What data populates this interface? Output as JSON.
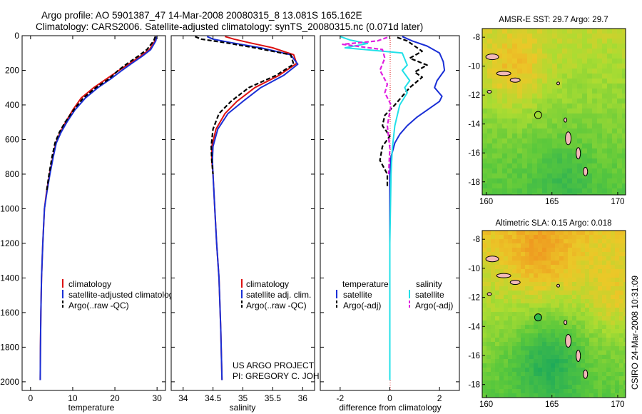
{
  "figure": {
    "title_line1": "Argo profile: AO 5901387_47 14-Mar-2008 20080315_8 13.081S 165.162E",
    "title_line2": "Climatology: CARS2006. Satellite-adjusted climatology: synTS_20080315.nc (0.071d later)",
    "credit_line1": "US ARGO PROJECT",
    "credit_line2": "PI: GREGORY C. JOHNSON",
    "stamp": "CSIRO 24-Mar-2008 10:31:09"
  },
  "colors": {
    "climatology": "#dd1111",
    "satellite": "#1a2fd6",
    "argo": "#000000",
    "satellite_salinity_diff": "#22e0e8",
    "argo_salinity_diff": "#e020e0"
  },
  "chart_data": [
    {
      "type": "line",
      "id": "temperature",
      "xlabel": "temperature",
      "ylabel": "",
      "xlim": [
        -2,
        32
      ],
      "ylim": [
        2050,
        0
      ],
      "xticks": [
        0,
        10,
        20,
        30
      ],
      "yticks": [
        0,
        200,
        400,
        600,
        800,
        1000,
        1200,
        1400,
        1600,
        1800,
        2000
      ],
      "legend": [
        "climatology",
        "satellite-adjusted climatology",
        "Argo(..raw -QC)"
      ],
      "series": [
        {
          "name": "climatology",
          "color": "climatology",
          "dash": "none",
          "x": [
            29.8,
            29.5,
            28.2,
            26,
            23.5,
            21,
            18,
            15,
            12,
            10,
            8.3,
            7,
            6,
            5.3,
            4.5,
            3.8,
            3.3,
            2.9,
            2.6,
            2.45,
            2.35,
            2.3
          ],
          "y": [
            5,
            30,
            80,
            120,
            160,
            200,
            250,
            300,
            360,
            430,
            500,
            560,
            620,
            700,
            800,
            900,
            1000,
            1200,
            1400,
            1600,
            1800,
            1990
          ]
        },
        {
          "name": "satellite-adjusted climatology",
          "color": "satellite",
          "dash": "none",
          "x": [
            29.9,
            29.7,
            28.5,
            26.4,
            24,
            21.7,
            19,
            16,
            13,
            10.5,
            8.6,
            7.2,
            6.1,
            5.4,
            4.6,
            3.9,
            3.3,
            2.9,
            2.6,
            2.45,
            2.35,
            2.3
          ],
          "y": [
            5,
            30,
            80,
            120,
            160,
            200,
            250,
            300,
            360,
            430,
            500,
            560,
            620,
            700,
            800,
            900,
            1000,
            1200,
            1400,
            1600,
            1800,
            1990
          ]
        },
        {
          "name": "Argo(..raw -QC)",
          "color": "argo",
          "dash": "6,3",
          "x": [
            29.6,
            29.2,
            27.6,
            25.4,
            23,
            20.8,
            18.6,
            15.5,
            12.5,
            10.2,
            8.2,
            6.8,
            5.8,
            5.1,
            4.4,
            3.8
          ],
          "y": [
            5,
            30,
            80,
            120,
            160,
            200,
            250,
            300,
            360,
            430,
            500,
            560,
            620,
            700,
            800,
            900
          ]
        }
      ]
    },
    {
      "type": "line",
      "id": "salinity",
      "xlabel": "salinity",
      "ylabel": "",
      "xlim": [
        33.8,
        36.2
      ],
      "ylim": [
        2050,
        0
      ],
      "xticks": [
        34,
        34.5,
        35,
        35.5,
        36
      ],
      "yticks": [
        0,
        200,
        400,
        600,
        800,
        1000,
        1200,
        1400,
        1600,
        1800,
        2000
      ],
      "legend": [
        "climatology",
        "satellite adj. clim.",
        "Argo(..raw -QC)"
      ],
      "series": [
        {
          "name": "climatology",
          "color": "climatology",
          "dash": "none",
          "x": [
            34.7,
            34.85,
            35.1,
            35.5,
            35.85,
            35.9,
            35.6,
            35.2,
            34.9,
            34.7,
            34.55,
            34.48,
            34.48,
            34.5,
            34.53,
            34.56,
            34.6,
            34.63,
            34.65
          ],
          "y": [
            5,
            20,
            40,
            70,
            110,
            160,
            230,
            300,
            380,
            450,
            540,
            640,
            720,
            800,
            1000,
            1200,
            1400,
            1700,
            1990
          ]
        },
        {
          "name": "satellite adj. clim.",
          "color": "satellite",
          "dash": "none",
          "x": [
            34.4,
            34.5,
            34.8,
            35.3,
            35.8,
            35.92,
            35.68,
            35.3,
            35,
            34.75,
            34.58,
            34.5,
            34.49,
            34.5,
            34.53,
            34.56,
            34.6,
            34.63,
            34.65
          ],
          "y": [
            5,
            20,
            40,
            70,
            110,
            165,
            230,
            300,
            380,
            450,
            540,
            640,
            720,
            800,
            1000,
            1200,
            1400,
            1700,
            1990
          ]
        },
        {
          "name": "Argo(..raw -QC)",
          "color": "argo",
          "dash": "6,3",
          "x": [
            34.2,
            34.3,
            34.7,
            35.2,
            35.8,
            35.85,
            35.55,
            35.1,
            34.8,
            34.6,
            34.5,
            34.47,
            34.48,
            34.5
          ],
          "y": [
            5,
            20,
            40,
            70,
            110,
            165,
            230,
            300,
            380,
            450,
            540,
            640,
            720,
            800
          ]
        }
      ]
    },
    {
      "type": "line",
      "id": "difference",
      "xlabel": "difference from climatology",
      "ylabel": "",
      "xlim": [
        -2.8,
        2.8
      ],
      "ylim": [
        2050,
        0
      ],
      "xticks": [
        -2,
        0,
        2
      ],
      "yticks": [
        0,
        200,
        400,
        600,
        800,
        1000,
        1200,
        1400,
        1600,
        1800,
        2000
      ],
      "legend_left_title": "temperature",
      "legend_right_title": "salinity",
      "legend": [
        "satellite",
        "Argo(-adj)",
        "satellite",
        "Argo(-adj)"
      ],
      "series": [
        {
          "name": "temperature satellite",
          "color": "satellite",
          "dash": "none",
          "x": [
            0.5,
            0.9,
            1.5,
            2,
            2.15,
            2.2,
            1.9,
            1.8,
            2.1,
            2,
            1.6,
            1.1,
            0.7,
            0.4,
            0.2,
            0.05,
            0,
            0,
            0,
            0,
            0
          ],
          "y": [
            5,
            30,
            60,
            100,
            150,
            200,
            260,
            300,
            350,
            380,
            420,
            470,
            520,
            570,
            620,
            700,
            800,
            1000,
            1400,
            1800,
            1990
          ]
        },
        {
          "name": "temperature Argo(-adj)",
          "color": "argo",
          "dash": "6,3",
          "x": [
            0.3,
            0.7,
            1,
            1.3,
            0.8,
            1.5,
            1,
            1.3,
            0.8,
            0.5,
            0.2,
            -0.2,
            -0.3,
            0,
            -0.3,
            -0.4,
            -0.1,
            -0.1
          ],
          "y": [
            10,
            30,
            60,
            90,
            130,
            170,
            210,
            240,
            300,
            350,
            400,
            460,
            520,
            580,
            640,
            720,
            800,
            880
          ]
        },
        {
          "name": "salinity satellite",
          "color": "satellite_salinity_diff",
          "dash": "none",
          "x": [
            -2,
            -1.6,
            -0.9,
            -1.8,
            0.5,
            0.7,
            0.5,
            0.8,
            0.6,
            0.7,
            0.4,
            0.2,
            0.1,
            0.05,
            0,
            0
          ],
          "y": [
            5,
            25,
            45,
            70,
            100,
            170,
            200,
            260,
            300,
            330,
            400,
            520,
            650,
            800,
            1200,
            1990
          ]
        },
        {
          "name": "salinity Argo(-adj)",
          "color": "argo_salinity_diff",
          "dash": "6,3",
          "x": [
            -0.1,
            -0.5,
            -1.9,
            -0.3,
            -0.2,
            -0.4,
            -0.1,
            -0.2,
            0.05,
            -0.1,
            0,
            -0.05
          ],
          "y": [
            10,
            30,
            50,
            80,
            130,
            200,
            280,
            330,
            400,
            520,
            650,
            800
          ]
        }
      ]
    }
  ],
  "maps": [
    {
      "id": "sst",
      "title": "AMSR-E SST: 29.7 Argo: 29.7",
      "xticks": [
        "160",
        "165",
        "170"
      ],
      "yticks": [
        "-8",
        "-10",
        "-12",
        "-14",
        "-16",
        "-18"
      ]
    },
    {
      "id": "sla",
      "title": "Altimetric SLA: 0.15 Argo: 0.018",
      "xticks": [
        "160",
        "165",
        "170"
      ],
      "yticks": [
        "-8",
        "-10",
        "-12",
        "-14",
        "-16",
        "-18"
      ]
    }
  ]
}
